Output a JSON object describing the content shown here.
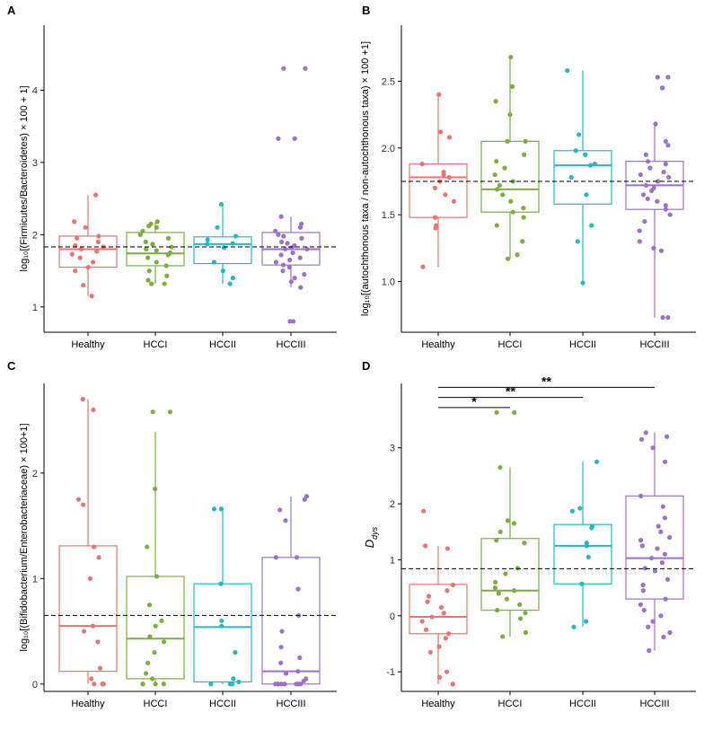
{
  "colors": {
    "Healthy": "#E8756F",
    "HCCI": "#7BAE3F",
    "HCCII": "#27B7C2",
    "HCCIII": "#9B72C8"
  },
  "chart_data": [
    {
      "panel": "A",
      "type": "box",
      "ylabel": "log₁₀[(Firmicutes/Bacteroidetes) × 100 + 1]",
      "categories": [
        "Healthy",
        "HCCI",
        "HCCII",
        "HCCIII"
      ],
      "yticks": [
        1,
        2,
        3,
        4
      ],
      "ylim": [
        0.65,
        4.9
      ],
      "reference_line": 1.83,
      "boxes": [
        {
          "q1": 1.55,
          "median": 1.8,
          "q3": 1.98,
          "whisker_low": 1.15,
          "whisker_high": 2.55
        },
        {
          "q1": 1.57,
          "median": 1.74,
          "q3": 2.03,
          "whisker_low": 1.32,
          "whisker_high": 2.18
        },
        {
          "q1": 1.6,
          "median": 1.87,
          "q3": 1.97,
          "whisker_low": 1.32,
          "whisker_high": 2.42
        },
        {
          "q1": 1.58,
          "median": 1.8,
          "q3": 2.03,
          "whisker_low": 1.27,
          "whisker_high": 2.25
        }
      ],
      "points": [
        [
          2.55,
          2.18,
          2.1,
          1.98,
          1.95,
          1.9,
          1.85,
          1.83,
          1.8,
          1.77,
          1.73,
          1.68,
          1.62,
          1.55,
          1.5,
          1.3,
          1.15
        ],
        [
          2.18,
          2.15,
          2.12,
          2.1,
          2.05,
          2.0,
          1.95,
          1.9,
          1.87,
          1.83,
          1.8,
          1.78,
          1.75,
          1.72,
          1.68,
          1.62,
          1.57,
          1.5,
          1.43,
          1.37,
          1.32,
          1.32
        ],
        [
          2.42,
          2.1,
          1.98,
          1.93,
          1.88,
          1.87,
          1.82,
          1.62,
          1.5,
          1.4,
          1.32
        ],
        [
          4.3,
          4.3,
          3.33,
          3.33,
          2.25,
          2.15,
          2.1,
          2.05,
          2.0,
          1.98,
          1.95,
          1.9,
          1.88,
          1.85,
          1.82,
          1.8,
          1.8,
          1.75,
          1.72,
          1.68,
          1.65,
          1.62,
          1.58,
          1.55,
          1.5,
          1.45,
          1.4,
          1.35,
          1.27,
          0.8,
          0.8
        ]
      ]
    },
    {
      "panel": "B",
      "type": "box",
      "ylabel": "log₁₀[(autochthonous taxa / non-autochthonous taxa) × 100 +1]",
      "categories": [
        "Healthy",
        "HCCI",
        "HCCII",
        "HCCIII"
      ],
      "yticks": [
        1.0,
        1.5,
        2.0,
        2.5
      ],
      "ylim": [
        0.62,
        2.92
      ],
      "reference_line": 1.75,
      "boxes": [
        {
          "q1": 1.48,
          "median": 1.78,
          "q3": 1.88,
          "whisker_low": 1.11,
          "whisker_high": 2.4
        },
        {
          "q1": 1.52,
          "median": 1.69,
          "q3": 2.05,
          "whisker_low": 1.17,
          "whisker_high": 2.68
        },
        {
          "q1": 1.58,
          "median": 1.87,
          "q3": 1.98,
          "whisker_low": 0.99,
          "whisker_high": 2.58
        },
        {
          "q1": 1.54,
          "median": 1.72,
          "q3": 1.9,
          "whisker_low": 0.73,
          "whisker_high": 2.18
        }
      ],
      "points": [
        [
          2.4,
          2.12,
          2.08,
          1.88,
          1.82,
          1.8,
          1.78,
          1.75,
          1.7,
          1.65,
          1.6,
          1.48,
          1.42,
          1.4,
          1.11
        ],
        [
          2.68,
          2.46,
          2.35,
          2.25,
          2.05,
          2.05,
          1.95,
          1.9,
          1.85,
          1.8,
          1.75,
          1.72,
          1.69,
          1.65,
          1.6,
          1.55,
          1.52,
          1.48,
          1.42,
          1.3,
          1.2,
          1.17
        ],
        [
          2.58,
          2.1,
          1.98,
          1.95,
          1.88,
          1.87,
          1.78,
          1.65,
          1.42,
          1.3,
          0.99
        ],
        [
          2.53,
          2.53,
          2.45,
          2.45,
          2.18,
          2.05,
          2.02,
          1.95,
          1.9,
          1.88,
          1.85,
          1.82,
          1.8,
          1.78,
          1.75,
          1.72,
          1.7,
          1.68,
          1.65,
          1.62,
          1.6,
          1.57,
          1.54,
          1.5,
          1.45,
          1.38,
          1.3,
          1.25,
          1.23,
          0.73,
          0.73
        ]
      ]
    },
    {
      "panel": "C",
      "type": "box",
      "ylabel": "log₁₀[(Bifidobacterium/Enterobacteriaceae) × 100+1]",
      "categories": [
        "Healthy",
        "HCCI",
        "HCCII",
        "HCCIII"
      ],
      "yticks": [
        0,
        1,
        2
      ],
      "ylim": [
        -0.07,
        2.85
      ],
      "reference_line": 0.65,
      "boxes": [
        {
          "q1": 0.12,
          "median": 0.55,
          "q3": 1.31,
          "whisker_low": 0.0,
          "whisker_high": 2.7
        },
        {
          "q1": 0.05,
          "median": 0.43,
          "q3": 1.02,
          "whisker_low": 0.0,
          "whisker_high": 2.39
        },
        {
          "q1": 0.02,
          "median": 0.54,
          "q3": 0.95,
          "whisker_low": 0.0,
          "whisker_high": 1.66
        },
        {
          "q1": 0.0,
          "median": 0.12,
          "q3": 1.2,
          "whisker_low": 0.0,
          "whisker_high": 1.78
        }
      ],
      "points": [
        [
          2.7,
          2.6,
          1.75,
          1.7,
          1.3,
          1.2,
          1.0,
          0.55,
          0.5,
          0.4,
          0.15,
          0.05,
          0.0,
          0.0,
          0.0
        ],
        [
          2.58,
          2.58,
          1.85,
          1.3,
          1.02,
          0.75,
          0.6,
          0.55,
          0.45,
          0.4,
          0.3,
          0.2,
          0.1,
          0.05,
          0.0,
          0.0,
          0.0,
          0.0
        ],
        [
          1.66,
          1.66,
          0.95,
          0.6,
          0.55,
          0.3,
          0.05,
          0.02,
          0.0,
          0.0,
          0.0
        ],
        [
          1.78,
          1.75,
          1.65,
          1.55,
          1.2,
          1.2,
          0.9,
          0.65,
          0.5,
          0.35,
          0.25,
          0.2,
          0.12,
          0.1,
          0.05,
          0.03,
          0.0,
          0.0,
          0.0,
          0.0,
          0.0,
          0.0,
          0.0,
          0.0,
          0.0
        ]
      ]
    },
    {
      "panel": "D",
      "type": "box",
      "ylabel_main": "D",
      "ylabel_sub": "dys",
      "categories": [
        "Healthy",
        "HCCI",
        "HCCII",
        "HCCIII"
      ],
      "yticks": [
        -1,
        0,
        1,
        2,
        3
      ],
      "ylim": [
        -1.35,
        4.15
      ],
      "reference_line": 0.84,
      "significance": [
        {
          "from": "Healthy",
          "to": "HCCI",
          "label": "*",
          "y": 3.72
        },
        {
          "from": "Healthy",
          "to": "HCCII",
          "label": "**",
          "y": 3.9
        },
        {
          "from": "Healthy",
          "to": "HCCIII",
          "label": "**",
          "y": 4.08
        }
      ],
      "boxes": [
        {
          "q1": -0.32,
          "median": -0.02,
          "q3": 0.56,
          "whisker_low": -1.22,
          "whisker_high": 1.25
        },
        {
          "q1": 0.1,
          "median": 0.45,
          "q3": 1.38,
          "whisker_low": -0.37,
          "whisker_high": 2.65
        },
        {
          "q1": 0.57,
          "median": 1.25,
          "q3": 1.63,
          "whisker_low": -0.2,
          "whisker_high": 2.75
        },
        {
          "q1": 0.3,
          "median": 1.03,
          "q3": 2.14,
          "whisker_low": -0.62,
          "whisker_high": 3.27
        }
      ],
      "points": [
        [
          1.87,
          1.25,
          1.2,
          0.55,
          0.45,
          0.35,
          0.25,
          0.15,
          0.05,
          -0.02,
          -0.1,
          -0.25,
          -0.32,
          -0.4,
          -0.55,
          -0.65,
          -1.0,
          -1.1,
          -1.22
        ],
        [
          3.63,
          3.63,
          2.65,
          1.7,
          1.65,
          1.5,
          1.35,
          1.3,
          0.85,
          0.75,
          0.6,
          0.5,
          0.45,
          0.4,
          0.3,
          0.2,
          0.1,
          0.05,
          -0.05,
          -0.3,
          -0.37
        ],
        [
          2.75,
          1.92,
          1.87,
          1.6,
          1.57,
          1.3,
          1.25,
          1.05,
          0.57,
          -0.1,
          -0.2
        ],
        [
          3.27,
          3.2,
          3.15,
          3.0,
          2.75,
          2.14,
          1.95,
          1.75,
          1.6,
          1.5,
          1.4,
          1.35,
          1.25,
          1.2,
          1.1,
          1.03,
          0.95,
          0.85,
          0.8,
          0.65,
          0.55,
          0.45,
          0.3,
          0.2,
          0.1,
          0.0,
          -0.1,
          -0.2,
          -0.3,
          -0.38,
          -0.62
        ]
      ]
    }
  ]
}
